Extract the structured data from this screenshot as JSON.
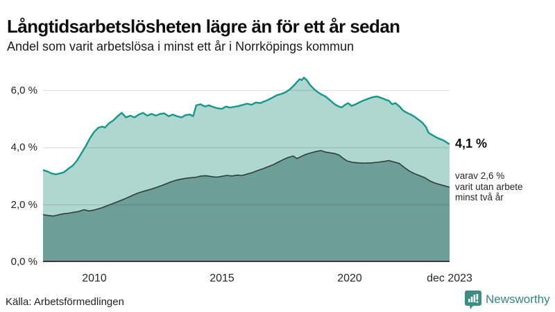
{
  "header": {
    "title": "Långtidsarbetslösheten lägre än för ett år sedan",
    "subtitle": "Andel som varit arbetslösa i minst ett år i Norrköpings kommun"
  },
  "source_label": "Källa: Arbetsförmedlingen",
  "brand": {
    "name": "Newsworthy",
    "color": "#35857d",
    "icon": "speech-bubble-bar-chart-icon"
  },
  "annotations": {
    "latest_value": "4,1 %",
    "sub_lines": [
      "varav 2,6 %",
      "varit utan arbete",
      "minst två år"
    ]
  },
  "chart_data": {
    "type": "area",
    "title": "Långtidsarbetslösheten lägre än för ett år sedan",
    "subtitle": "Andel som varit arbetslösa i minst ett år i Norrköpings kommun",
    "unit": "%",
    "grid": true,
    "legend_position": "none",
    "x_range": [
      2008.0,
      2023.92
    ],
    "y_range": [
      0,
      6.62
    ],
    "ytick_values": [
      6,
      4,
      2,
      0
    ],
    "ytick_labels": [
      "6,0 %",
      "4,0 %",
      "2,0 %",
      "0,0 %"
    ],
    "xtick_values": [
      2010,
      2015,
      2020,
      2023.92
    ],
    "xtick_labels": [
      "2010",
      "2015",
      "2020",
      "dec 2023"
    ],
    "colors": {
      "series1_line": "#149688",
      "series1_fill": "#aed7d0",
      "series2_line": "#2e3d3a",
      "series2_fill": "#6d9e98",
      "gridline": "rgba(0,0,0,0.12)",
      "axis": "#3c3c3c"
    },
    "series": [
      {
        "name": "Andel arbetslösa minst ett år",
        "latest_label": "4,1 %",
        "points": [
          [
            2008.0,
            3.22
          ],
          [
            2008.17,
            3.17
          ],
          [
            2008.33,
            3.1
          ],
          [
            2008.5,
            3.07
          ],
          [
            2008.67,
            3.1
          ],
          [
            2008.83,
            3.15
          ],
          [
            2009.0,
            3.27
          ],
          [
            2009.17,
            3.38
          ],
          [
            2009.33,
            3.55
          ],
          [
            2009.5,
            3.8
          ],
          [
            2009.67,
            4.05
          ],
          [
            2009.83,
            4.32
          ],
          [
            2010.0,
            4.55
          ],
          [
            2010.17,
            4.7
          ],
          [
            2010.33,
            4.74
          ],
          [
            2010.42,
            4.7
          ],
          [
            2010.58,
            4.85
          ],
          [
            2010.75,
            4.95
          ],
          [
            2010.92,
            5.1
          ],
          [
            2011.08,
            5.22
          ],
          [
            2011.25,
            5.06
          ],
          [
            2011.42,
            5.12
          ],
          [
            2011.58,
            5.06
          ],
          [
            2011.75,
            5.16
          ],
          [
            2011.92,
            5.22
          ],
          [
            2012.08,
            5.12
          ],
          [
            2012.25,
            5.18
          ],
          [
            2012.42,
            5.12
          ],
          [
            2012.58,
            5.18
          ],
          [
            2012.75,
            5.2
          ],
          [
            2012.92,
            5.1
          ],
          [
            2013.08,
            5.16
          ],
          [
            2013.25,
            5.1
          ],
          [
            2013.42,
            5.06
          ],
          [
            2013.58,
            5.14
          ],
          [
            2013.75,
            5.16
          ],
          [
            2013.88,
            5.1
          ],
          [
            2014.0,
            5.48
          ],
          [
            2014.17,
            5.52
          ],
          [
            2014.33,
            5.44
          ],
          [
            2014.5,
            5.48
          ],
          [
            2014.67,
            5.42
          ],
          [
            2014.83,
            5.38
          ],
          [
            2015.0,
            5.36
          ],
          [
            2015.17,
            5.44
          ],
          [
            2015.33,
            5.4
          ],
          [
            2015.5,
            5.43
          ],
          [
            2015.67,
            5.46
          ],
          [
            2015.83,
            5.5
          ],
          [
            2016.0,
            5.54
          ],
          [
            2016.17,
            5.5
          ],
          [
            2016.33,
            5.58
          ],
          [
            2016.5,
            5.56
          ],
          [
            2016.67,
            5.62
          ],
          [
            2016.83,
            5.68
          ],
          [
            2017.0,
            5.76
          ],
          [
            2017.17,
            5.84
          ],
          [
            2017.33,
            5.88
          ],
          [
            2017.5,
            5.94
          ],
          [
            2017.67,
            6.04
          ],
          [
            2017.83,
            6.18
          ],
          [
            2017.95,
            6.3
          ],
          [
            2018.05,
            6.4
          ],
          [
            2018.13,
            6.36
          ],
          [
            2018.22,
            6.45
          ],
          [
            2018.33,
            6.36
          ],
          [
            2018.45,
            6.2
          ],
          [
            2018.58,
            6.08
          ],
          [
            2018.7,
            5.98
          ],
          [
            2018.83,
            5.9
          ],
          [
            2018.95,
            5.84
          ],
          [
            2019.08,
            5.78
          ],
          [
            2019.25,
            5.65
          ],
          [
            2019.42,
            5.52
          ],
          [
            2019.58,
            5.44
          ],
          [
            2019.7,
            5.41
          ],
          [
            2019.83,
            5.5
          ],
          [
            2019.95,
            5.56
          ],
          [
            2020.08,
            5.46
          ],
          [
            2020.25,
            5.52
          ],
          [
            2020.42,
            5.6
          ],
          [
            2020.58,
            5.66
          ],
          [
            2020.75,
            5.72
          ],
          [
            2020.92,
            5.77
          ],
          [
            2021.08,
            5.79
          ],
          [
            2021.25,
            5.74
          ],
          [
            2021.42,
            5.68
          ],
          [
            2021.55,
            5.64
          ],
          [
            2021.67,
            5.52
          ],
          [
            2021.8,
            5.56
          ],
          [
            2021.95,
            5.45
          ],
          [
            2022.1,
            5.3
          ],
          [
            2022.25,
            5.22
          ],
          [
            2022.4,
            5.16
          ],
          [
            2022.55,
            5.08
          ],
          [
            2022.7,
            4.98
          ],
          [
            2022.85,
            4.88
          ],
          [
            2023.0,
            4.72
          ],
          [
            2023.1,
            4.52
          ],
          [
            2023.25,
            4.44
          ],
          [
            2023.4,
            4.36
          ],
          [
            2023.55,
            4.3
          ],
          [
            2023.7,
            4.25
          ],
          [
            2023.83,
            4.17
          ],
          [
            2023.92,
            4.12
          ]
        ]
      },
      {
        "name": "varav utan arbete minst två år",
        "latest_label": "2,6 %",
        "points": [
          [
            2008.0,
            1.66
          ],
          [
            2008.2,
            1.63
          ],
          [
            2008.4,
            1.61
          ],
          [
            2008.6,
            1.65
          ],
          [
            2008.8,
            1.69
          ],
          [
            2009.0,
            1.71
          ],
          [
            2009.2,
            1.74
          ],
          [
            2009.4,
            1.77
          ],
          [
            2009.6,
            1.83
          ],
          [
            2009.8,
            1.79
          ],
          [
            2010.0,
            1.82
          ],
          [
            2010.2,
            1.87
          ],
          [
            2010.4,
            1.93
          ],
          [
            2010.6,
            2.0
          ],
          [
            2010.8,
            2.07
          ],
          [
            2011.0,
            2.14
          ],
          [
            2011.2,
            2.21
          ],
          [
            2011.4,
            2.29
          ],
          [
            2011.6,
            2.37
          ],
          [
            2011.8,
            2.44
          ],
          [
            2012.0,
            2.49
          ],
          [
            2012.2,
            2.54
          ],
          [
            2012.4,
            2.6
          ],
          [
            2012.6,
            2.66
          ],
          [
            2012.8,
            2.73
          ],
          [
            2013.0,
            2.8
          ],
          [
            2013.2,
            2.86
          ],
          [
            2013.4,
            2.9
          ],
          [
            2013.6,
            2.93
          ],
          [
            2013.8,
            2.95
          ],
          [
            2014.0,
            2.97
          ],
          [
            2014.2,
            3.01
          ],
          [
            2014.4,
            3.02
          ],
          [
            2014.6,
            2.99
          ],
          [
            2014.8,
            2.97
          ],
          [
            2015.0,
            3.0
          ],
          [
            2015.2,
            3.03
          ],
          [
            2015.4,
            3.01
          ],
          [
            2015.6,
            3.04
          ],
          [
            2015.8,
            3.03
          ],
          [
            2016.0,
            3.08
          ],
          [
            2016.2,
            3.13
          ],
          [
            2016.4,
            3.2
          ],
          [
            2016.6,
            3.26
          ],
          [
            2016.8,
            3.33
          ],
          [
            2017.0,
            3.4
          ],
          [
            2017.2,
            3.49
          ],
          [
            2017.4,
            3.58
          ],
          [
            2017.6,
            3.66
          ],
          [
            2017.8,
            3.71
          ],
          [
            2017.95,
            3.62
          ],
          [
            2018.1,
            3.69
          ],
          [
            2018.3,
            3.77
          ],
          [
            2018.5,
            3.82
          ],
          [
            2018.7,
            3.87
          ],
          [
            2018.88,
            3.9
          ],
          [
            2019.05,
            3.85
          ],
          [
            2019.25,
            3.82
          ],
          [
            2019.45,
            3.79
          ],
          [
            2019.6,
            3.74
          ],
          [
            2019.75,
            3.63
          ],
          [
            2019.9,
            3.54
          ],
          [
            2020.1,
            3.49
          ],
          [
            2020.35,
            3.47
          ],
          [
            2020.6,
            3.46
          ],
          [
            2020.85,
            3.47
          ],
          [
            2021.1,
            3.49
          ],
          [
            2021.35,
            3.52
          ],
          [
            2021.55,
            3.55
          ],
          [
            2021.75,
            3.5
          ],
          [
            2021.95,
            3.45
          ],
          [
            2022.15,
            3.31
          ],
          [
            2022.35,
            3.18
          ],
          [
            2022.55,
            3.09
          ],
          [
            2022.75,
            3.02
          ],
          [
            2022.95,
            2.95
          ],
          [
            2023.15,
            2.84
          ],
          [
            2023.35,
            2.76
          ],
          [
            2023.55,
            2.71
          ],
          [
            2023.75,
            2.66
          ],
          [
            2023.92,
            2.62
          ]
        ]
      }
    ]
  }
}
